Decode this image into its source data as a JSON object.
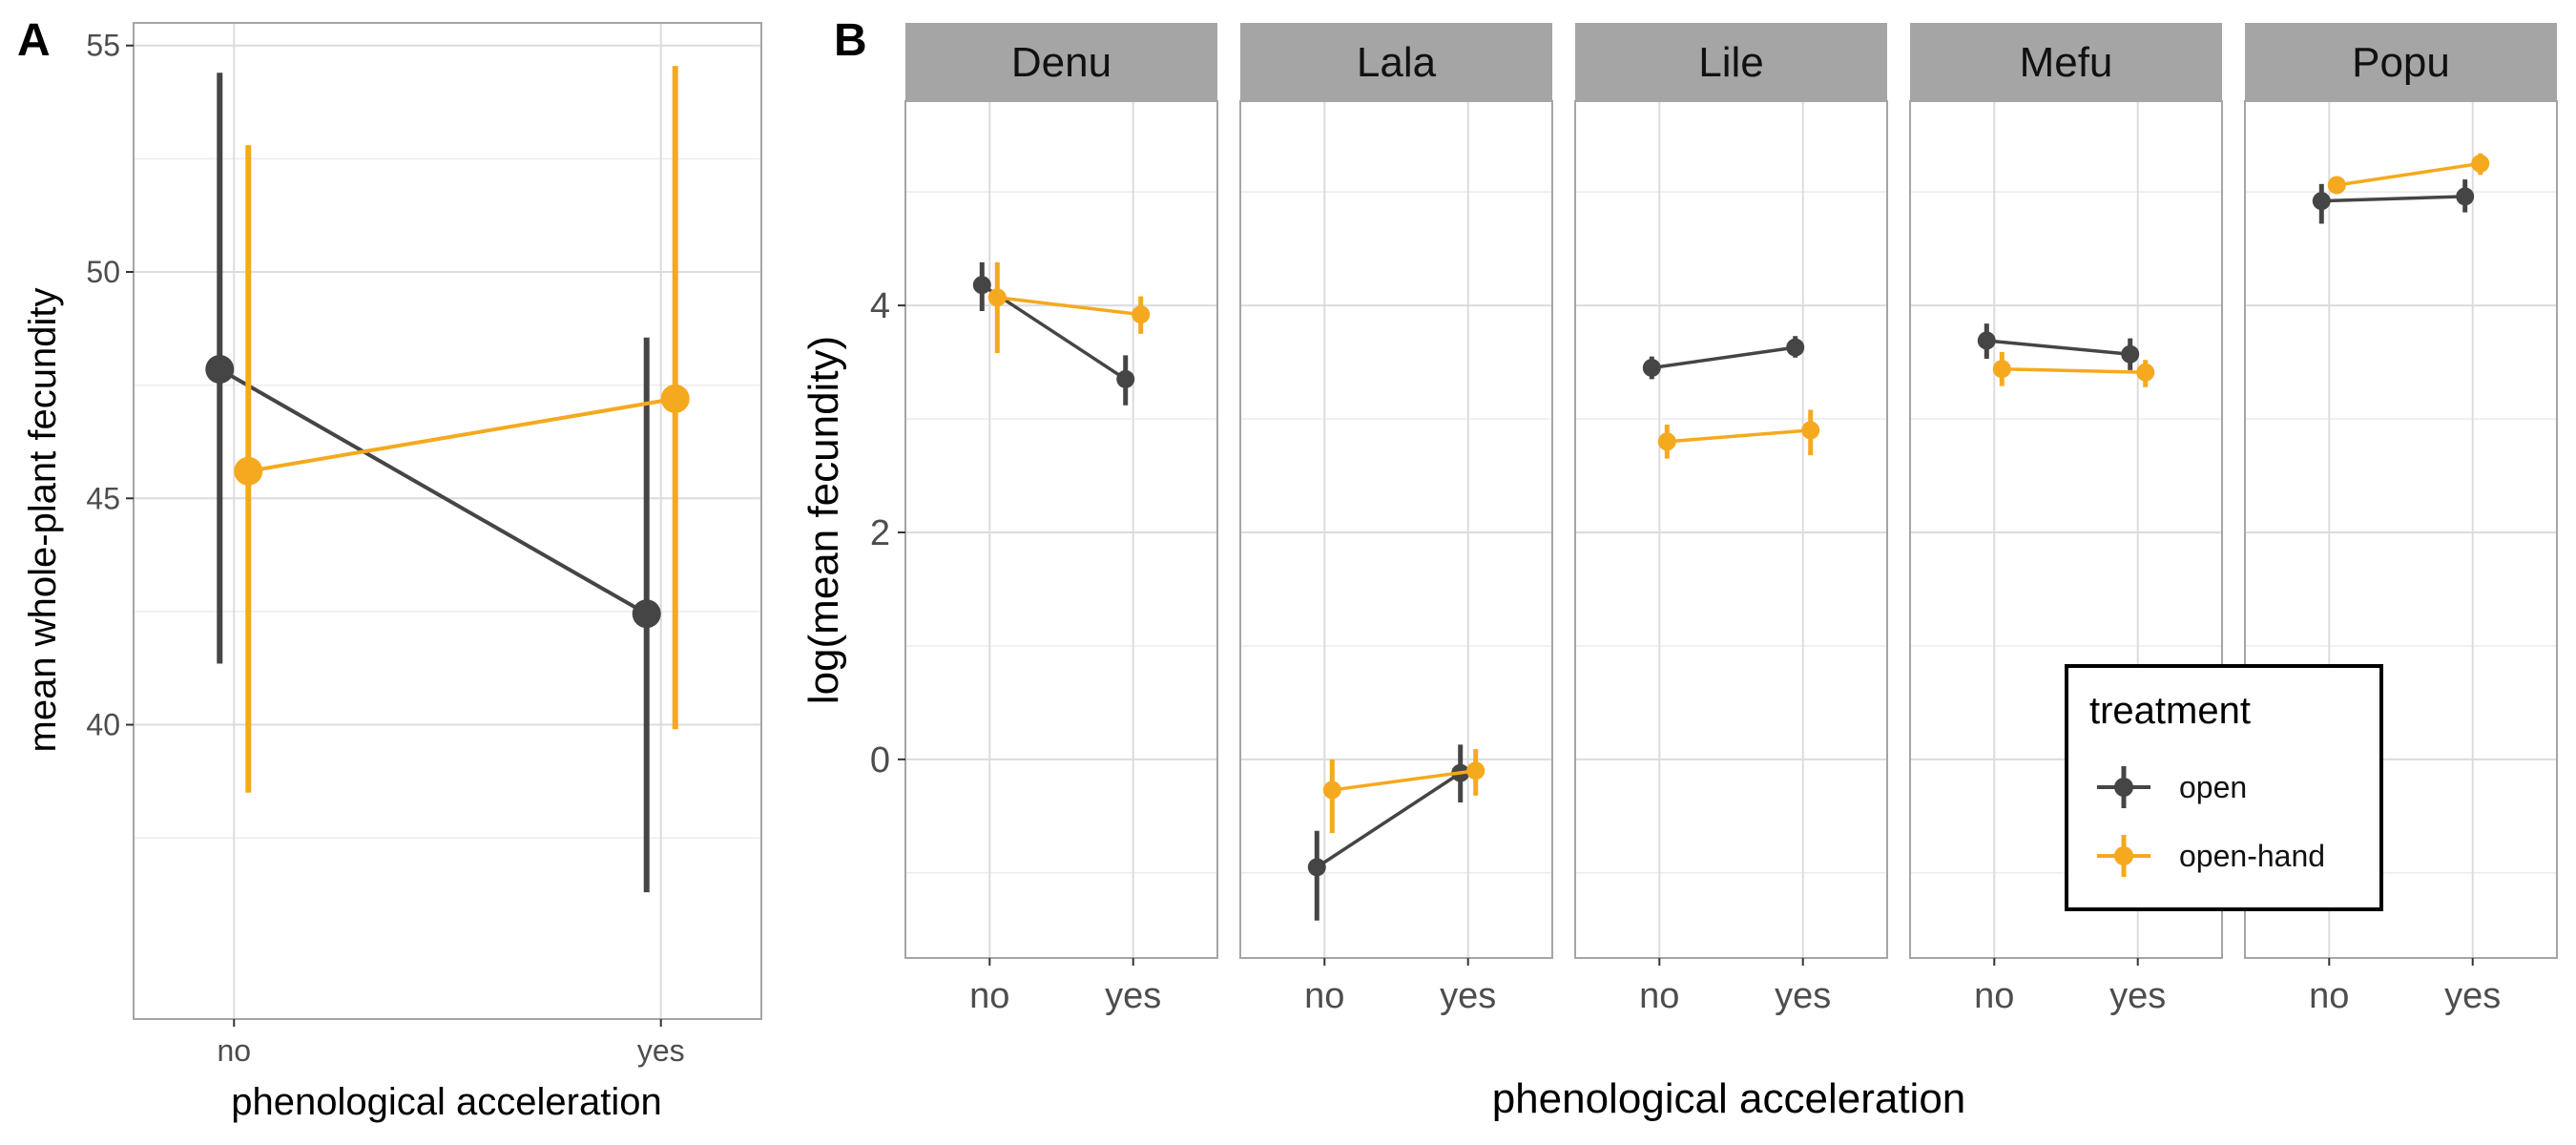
{
  "colors": {
    "open": "#454545",
    "open_hand": "#F5A91E",
    "grid": "#DCDCDC",
    "panel_border": "#A5A5A5",
    "strip_fill": "#A5A5A5",
    "axis_text": "#4D4D4D"
  },
  "panel_a": {
    "tag": "A",
    "xlabel": "phenological acceleration",
    "ylabel": "mean whole-plant fecundity",
    "categories": [
      "no",
      "yes"
    ]
  },
  "panel_b": {
    "tag": "B",
    "xlabel": "phenological acceleration",
    "ylabel": "log(mean fecundity)",
    "categories": [
      "no",
      "yes"
    ]
  },
  "legend": {
    "title": "treatment",
    "items": [
      "open",
      "open-hand"
    ]
  },
  "chart_data": [
    {
      "type": "line",
      "panel": "A",
      "categories": [
        "no",
        "yes"
      ],
      "ylim": [
        33.5,
        55.5
      ],
      "yticks": [
        40,
        45,
        50,
        55
      ],
      "grid": true,
      "series": [
        {
          "name": "open",
          "color": "#454545",
          "values": [
            47.85,
            42.45
          ],
          "lower": [
            41.35,
            36.3
          ],
          "upper": [
            54.4,
            48.55
          ]
        },
        {
          "name": "open-hand",
          "color": "#F5A91E",
          "values": [
            45.6,
            47.2
          ],
          "lower": [
            38.5,
            39.9
          ],
          "upper": [
            52.8,
            54.55
          ]
        }
      ]
    },
    {
      "type": "line",
      "panel": "B",
      "facets": [
        "Denu",
        "Lala",
        "Lile",
        "Mefu",
        "Popu"
      ],
      "categories": [
        "no",
        "yes"
      ],
      "ylim": [
        -1.75,
        5.8
      ],
      "yticks": [
        0,
        2,
        4
      ],
      "grid": true,
      "legend_position": "bottom-right",
      "series": [
        {
          "name": "open",
          "color": "#454545",
          "facet_values": {
            "Denu": {
              "values": [
                4.18,
                3.35
              ],
              "lower": [
                3.95,
                3.12
              ],
              "upper": [
                4.38,
                3.56
              ]
            },
            "Lala": {
              "values": [
                -0.95,
                -0.12
              ],
              "lower": [
                -1.42,
                -0.38
              ],
              "upper": [
                -0.63,
                0.13
              ]
            },
            "Lile": {
              "values": [
                3.45,
                3.63
              ],
              "lower": [
                3.35,
                3.54
              ],
              "upper": [
                3.55,
                3.73
              ]
            },
            "Mefu": {
              "values": [
                3.69,
                3.57
              ],
              "lower": [
                3.53,
                3.43
              ],
              "upper": [
                3.84,
                3.71
              ]
            },
            "Popu": {
              "values": [
                4.92,
                4.96
              ],
              "lower": [
                4.72,
                4.82
              ],
              "upper": [
                5.07,
                5.11
              ]
            }
          }
        },
        {
          "name": "open-hand",
          "color": "#F5A91E",
          "facet_values": {
            "Denu": {
              "values": [
                4.07,
                3.92
              ],
              "lower": [
                3.58,
                3.75
              ],
              "upper": [
                4.38,
                4.08
              ]
            },
            "Lala": {
              "values": [
                -0.27,
                -0.1
              ],
              "lower": [
                -0.65,
                -0.32
              ],
              "upper": [
                0.0,
                0.09
              ]
            },
            "Lile": {
              "values": [
                2.8,
                2.9
              ],
              "lower": [
                2.65,
                2.68
              ],
              "upper": [
                2.95,
                3.08
              ]
            },
            "Mefu": {
              "values": [
                3.44,
                3.41
              ],
              "lower": [
                3.29,
                3.28
              ],
              "upper": [
                3.59,
                3.52
              ]
            },
            "Popu": {
              "values": [
                5.06,
                5.25
              ],
              "lower": [
                5.0,
                5.15
              ],
              "upper": [
                5.12,
                5.34
              ]
            }
          }
        }
      ]
    }
  ]
}
